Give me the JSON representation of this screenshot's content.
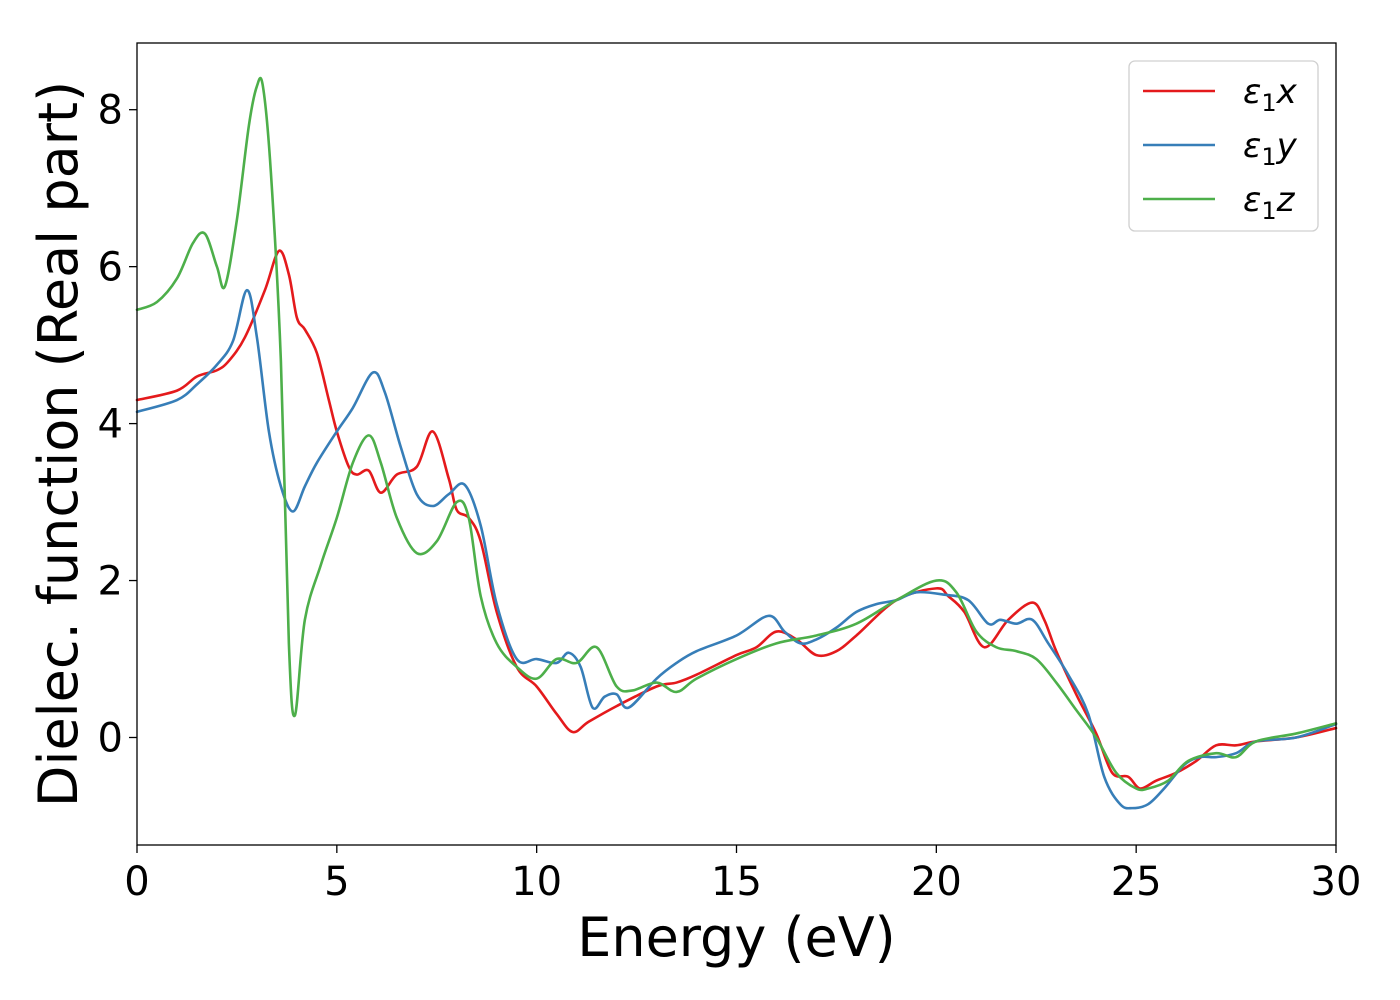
{
  "chart_data": {
    "type": "line",
    "xlabel": "Energy (eV)",
    "ylabel": "Dielec. function (Real part)",
    "xlim": [
      0,
      30
    ],
    "ylim": [
      -1.37,
      8.85
    ],
    "xticks": [
      0,
      5,
      10,
      15,
      20,
      25,
      30
    ],
    "yticks": [
      0,
      2,
      4,
      6,
      8
    ],
    "grid": false,
    "legend_position": "top-right",
    "series": [
      {
        "name": "ε1x",
        "legend_main": "ε",
        "legend_sub": "1",
        "legend_suffix": "x",
        "color": "#e41a1c",
        "x": [
          0,
          1,
          1.5,
          2,
          2.3,
          2.7,
          3.2,
          3.55,
          3.8,
          4.0,
          4.2,
          4.5,
          4.8,
          5.0,
          5.3,
          5.5,
          5.8,
          6.1,
          6.5,
          7.0,
          7.4,
          7.8,
          8.0,
          8.3,
          8.6,
          9.0,
          9.5,
          10.0,
          10.5,
          10.9,
          11.3,
          12.0,
          13.0,
          13.5,
          14.0,
          15.0,
          15.5,
          16.0,
          16.5,
          17.0,
          17.5,
          18.0,
          19.0,
          20.0,
          20.3,
          20.7,
          21.2,
          21.8,
          22.4,
          22.7,
          23.0,
          23.5,
          24.0,
          24.4,
          24.8,
          25.1,
          25.5,
          26.0,
          26.5,
          27.0,
          27.5,
          28.0,
          29.0,
          30.0
        ],
        "y": [
          4.3,
          4.42,
          4.6,
          4.68,
          4.8,
          5.1,
          5.7,
          6.2,
          5.9,
          5.35,
          5.2,
          4.9,
          4.3,
          3.9,
          3.45,
          3.35,
          3.4,
          3.12,
          3.35,
          3.45,
          3.9,
          3.3,
          2.9,
          2.8,
          2.5,
          1.6,
          0.9,
          0.65,
          0.3,
          0.07,
          0.2,
          0.4,
          0.65,
          0.7,
          0.8,
          1.05,
          1.15,
          1.35,
          1.25,
          1.05,
          1.1,
          1.3,
          1.75,
          1.9,
          1.8,
          1.6,
          1.15,
          1.5,
          1.72,
          1.5,
          1.1,
          0.55,
          0.05,
          -0.45,
          -0.5,
          -0.65,
          -0.55,
          -0.45,
          -0.3,
          -0.1,
          -0.1,
          -0.05,
          0.0,
          0.12
        ]
      },
      {
        "name": "ε1y",
        "legend_main": "ε",
        "legend_sub": "1",
        "legend_suffix": "y",
        "color": "#377eb8",
        "x": [
          0,
          1,
          1.5,
          2.0,
          2.4,
          2.75,
          3.0,
          3.3,
          3.6,
          3.9,
          4.2,
          4.5,
          5.0,
          5.4,
          5.9,
          6.2,
          6.6,
          7.0,
          7.4,
          7.8,
          8.2,
          8.6,
          9.0,
          9.5,
          10.0,
          10.5,
          10.8,
          11.1,
          11.4,
          11.7,
          12.0,
          12.3,
          13.0,
          13.5,
          14.0,
          15.0,
          15.8,
          16.2,
          16.6,
          17.0,
          17.5,
          18.0,
          18.5,
          19.0,
          19.5,
          20.2,
          20.8,
          21.3,
          21.6,
          22.0,
          22.4,
          22.8,
          23.3,
          23.8,
          24.2,
          24.6,
          24.9,
          25.3,
          25.7,
          26.2,
          26.6,
          27.0,
          27.5,
          28.0,
          29.0,
          30.0
        ],
        "y": [
          4.15,
          4.3,
          4.5,
          4.75,
          5.05,
          5.7,
          5.1,
          3.9,
          3.2,
          2.88,
          3.2,
          3.5,
          3.9,
          4.2,
          4.65,
          4.4,
          3.7,
          3.1,
          2.95,
          3.1,
          3.22,
          2.7,
          1.7,
          1.0,
          1.0,
          0.95,
          1.08,
          0.9,
          0.38,
          0.52,
          0.55,
          0.38,
          0.75,
          0.95,
          1.1,
          1.3,
          1.55,
          1.35,
          1.2,
          1.25,
          1.4,
          1.6,
          1.7,
          1.75,
          1.85,
          1.82,
          1.75,
          1.45,
          1.5,
          1.45,
          1.5,
          1.2,
          0.8,
          0.3,
          -0.5,
          -0.85,
          -0.9,
          -0.85,
          -0.65,
          -0.35,
          -0.25,
          -0.25,
          -0.2,
          -0.05,
          0.0,
          0.17
        ]
      },
      {
        "name": "ε1z",
        "legend_main": "ε",
        "legend_sub": "1",
        "legend_suffix": "z",
        "color": "#4daf4a",
        "x": [
          0,
          0.5,
          1.0,
          1.4,
          1.7,
          2.0,
          2.2,
          2.5,
          2.8,
          3.0,
          3.15,
          3.35,
          3.6,
          3.8,
          3.95,
          4.2,
          4.6,
          5.0,
          5.4,
          5.8,
          6.1,
          6.5,
          7.0,
          7.5,
          8.0,
          8.3,
          8.6,
          9.0,
          9.5,
          10.0,
          10.5,
          11.0,
          11.5,
          12.0,
          12.4,
          13.0,
          13.5,
          14.0,
          15.0,
          16.0,
          17.0,
          18.0,
          19.0,
          20.0,
          20.5,
          21.0,
          21.5,
          22.0,
          22.5,
          23.0,
          23.5,
          24.0,
          24.5,
          25.0,
          25.3,
          25.8,
          26.3,
          27.0,
          27.5,
          28.0,
          29.0,
          30.0
        ],
        "y": [
          5.45,
          5.55,
          5.85,
          6.3,
          6.42,
          6.0,
          5.75,
          6.6,
          7.8,
          8.3,
          8.3,
          7.2,
          4.8,
          1.2,
          0.28,
          1.5,
          2.2,
          2.8,
          3.5,
          3.85,
          3.5,
          2.8,
          2.35,
          2.5,
          3.0,
          2.8,
          1.8,
          1.2,
          0.9,
          0.75,
          1.0,
          0.95,
          1.15,
          0.65,
          0.6,
          0.7,
          0.58,
          0.75,
          1.0,
          1.2,
          1.3,
          1.45,
          1.75,
          2.0,
          1.85,
          1.35,
          1.15,
          1.1,
          1.0,
          0.7,
          0.35,
          0.0,
          -0.45,
          -0.65,
          -0.65,
          -0.55,
          -0.3,
          -0.2,
          -0.25,
          -0.05,
          0.05,
          0.18
        ]
      }
    ]
  }
}
